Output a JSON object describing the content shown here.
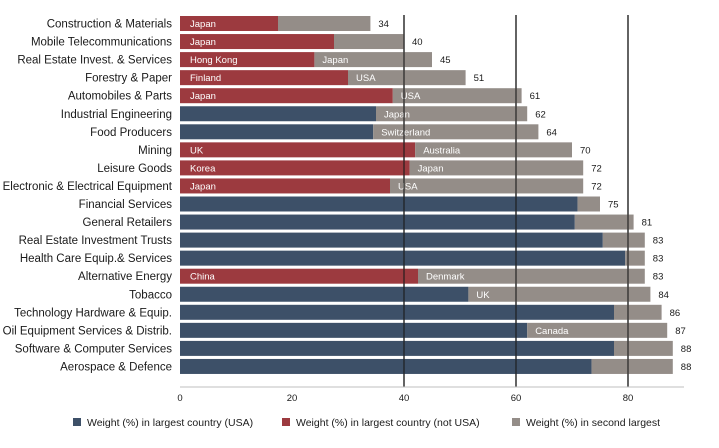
{
  "chart_data": {
    "type": "bar",
    "orientation": "horizontal",
    "stacked": true,
    "title": "",
    "xlabel": "",
    "ylabel": "",
    "xlim": [
      0,
      90
    ],
    "xticks": [
      0,
      20,
      40,
      60,
      80
    ],
    "grid_x": true,
    "legend_position": "bottom",
    "colors": {
      "usa": "#3d5068",
      "not_usa": "#9c3a3f",
      "second": "#948d88",
      "grid": "#1a1a1a",
      "axis": "#bfbfbf"
    },
    "series": [
      {
        "key": "usa",
        "name": "Weight (%) in largest country (USA)"
      },
      {
        "key": "not_usa",
        "name": "Weight (%) in largest country (not USA)"
      },
      {
        "key": "second",
        "name": "Weight (%) in second largest"
      }
    ],
    "rows": [
      {
        "category": "Construction & Materials",
        "first_type": "not_usa",
        "first": 17.5,
        "first_label": "Japan",
        "second": 16.5,
        "second_label": "",
        "total": 34
      },
      {
        "category": "Mobile Telecommunications",
        "first_type": "not_usa",
        "first": 27.5,
        "first_label": "Japan",
        "second": 12.5,
        "second_label": "",
        "total": 40
      },
      {
        "category": "Real Estate Invest. & Services",
        "first_type": "not_usa",
        "first": 24,
        "first_label": "Hong Kong",
        "second": 21,
        "second_label": "Japan",
        "total": 45
      },
      {
        "category": "Forestry & Paper",
        "first_type": "not_usa",
        "first": 30,
        "first_label": "Finland",
        "second": 21,
        "second_label": "USA",
        "total": 51
      },
      {
        "category": "Automobiles & Parts",
        "first_type": "not_usa",
        "first": 38,
        "first_label": "Japan",
        "second": 23,
        "second_label": "USA",
        "total": 61
      },
      {
        "category": "Industrial Engineering",
        "first_type": "usa",
        "first": 35,
        "first_label": "",
        "second": 27,
        "second_label": "Japan",
        "total": 62
      },
      {
        "category": "Food Producers",
        "first_type": "usa",
        "first": 34.5,
        "first_label": "",
        "second": 29.5,
        "second_label": "Switzerland",
        "total": 64
      },
      {
        "category": "Mining",
        "first_type": "not_usa",
        "first": 42,
        "first_label": "UK",
        "second": 28,
        "second_label": "Australia",
        "total": 70
      },
      {
        "category": "Leisure Goods",
        "first_type": "not_usa",
        "first": 41,
        "first_label": "Korea",
        "second": 31,
        "second_label": "Japan",
        "total": 72
      },
      {
        "category": "Electronic & Electrical Equipment",
        "first_type": "not_usa",
        "first": 37.5,
        "first_label": "Japan",
        "second": 34.5,
        "second_label": "USA",
        "total": 72
      },
      {
        "category": "Financial Services",
        "first_type": "usa",
        "first": 71,
        "first_label": "",
        "second": 4,
        "second_label": "",
        "total": 75
      },
      {
        "category": "General Retailers",
        "first_type": "usa",
        "first": 70.5,
        "first_label": "",
        "second": 10.5,
        "second_label": "",
        "total": 81
      },
      {
        "category": "Real Estate Investment Trusts",
        "first_type": "usa",
        "first": 75.5,
        "first_label": "",
        "second": 7.5,
        "second_label": "",
        "total": 83
      },
      {
        "category": "Health Care Equip.& Services",
        "first_type": "usa",
        "first": 79.5,
        "first_label": "",
        "second": 3.5,
        "second_label": "",
        "total": 83
      },
      {
        "category": "Alternative Energy",
        "first_type": "not_usa",
        "first": 42.5,
        "first_label": "China",
        "second": 40.5,
        "second_label": "Denmark",
        "total": 83
      },
      {
        "category": "Tobacco",
        "first_type": "usa",
        "first": 51.5,
        "first_label": "",
        "second": 32.5,
        "second_label": "UK",
        "total": 84
      },
      {
        "category": "Technology Hardware & Equip.",
        "first_type": "usa",
        "first": 77.5,
        "first_label": "",
        "second": 8.5,
        "second_label": "",
        "total": 86
      },
      {
        "category": "Oil Equipment Services & Distrib.",
        "first_type": "usa",
        "first": 62,
        "first_label": "",
        "second": 25,
        "second_label": "Canada",
        "total": 87
      },
      {
        "category": "Software & Computer Services",
        "first_type": "usa",
        "first": 77.5,
        "first_label": "",
        "second": 10.5,
        "second_label": "",
        "total": 88
      },
      {
        "category": "Aerospace & Defence",
        "first_type": "usa",
        "first": 73.5,
        "first_label": "",
        "second": 14.5,
        "second_label": "",
        "total": 88
      }
    ]
  }
}
